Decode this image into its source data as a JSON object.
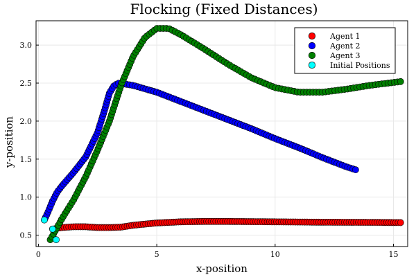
{
  "chart_data": {
    "type": "scatter",
    "title": "Flocking (Fixed Distances)",
    "xlabel": "x-position",
    "ylabel": "y-position",
    "xlim": [
      -0.1,
      15.6
    ],
    "ylim": [
      0.35,
      3.32
    ],
    "xticks": [
      0,
      5,
      10,
      15
    ],
    "yticks": [
      0.5,
      1.0,
      1.5,
      2.0,
      2.5,
      3.0
    ],
    "xtick_labels": [
      "0",
      "5",
      "10",
      "15"
    ],
    "ytick_labels": [
      "0.5",
      "1.0",
      "1.5",
      "2.0",
      "2.5",
      "3.0"
    ],
    "grid": true,
    "legend_position": "top-right",
    "series": [
      {
        "name": "Agent 1",
        "color": "#ff0000",
        "anchors": [
          [
            0.6,
            0.58
          ],
          [
            1.0,
            0.6
          ],
          [
            1.5,
            0.61
          ],
          [
            2.0,
            0.61
          ],
          [
            2.5,
            0.6
          ],
          [
            3.0,
            0.6
          ],
          [
            3.5,
            0.605
          ],
          [
            4.0,
            0.63
          ],
          [
            5.0,
            0.66
          ],
          [
            6.0,
            0.675
          ],
          [
            7.0,
            0.68
          ],
          [
            8.0,
            0.68
          ],
          [
            10.0,
            0.675
          ],
          [
            12.0,
            0.67
          ],
          [
            14.0,
            0.668
          ],
          [
            15.3,
            0.665
          ]
        ],
        "count": 150
      },
      {
        "name": "Agent 2",
        "color": "#0000ff",
        "anchors": [
          [
            0.25,
            0.7
          ],
          [
            0.4,
            0.8
          ],
          [
            0.6,
            0.95
          ],
          [
            0.8,
            1.07
          ],
          [
            1.0,
            1.15
          ],
          [
            1.5,
            1.33
          ],
          [
            2.0,
            1.53
          ],
          [
            2.5,
            1.85
          ],
          [
            2.8,
            2.15
          ],
          [
            3.0,
            2.37
          ],
          [
            3.2,
            2.47
          ],
          [
            3.4,
            2.5
          ],
          [
            4.0,
            2.47
          ],
          [
            5.0,
            2.38
          ],
          [
            6.0,
            2.26
          ],
          [
            7.0,
            2.14
          ],
          [
            8.0,
            2.02
          ],
          [
            9.0,
            1.9
          ],
          [
            10.0,
            1.77
          ],
          [
            11.0,
            1.65
          ],
          [
            12.0,
            1.52
          ],
          [
            13.0,
            1.4
          ],
          [
            13.4,
            1.36
          ]
        ],
        "count": 145
      },
      {
        "name": "Agent 3",
        "color": "#008000",
        "anchors": [
          [
            0.5,
            0.44
          ],
          [
            0.7,
            0.55
          ],
          [
            1.0,
            0.72
          ],
          [
            1.5,
            0.97
          ],
          [
            2.0,
            1.27
          ],
          [
            2.5,
            1.62
          ],
          [
            3.0,
            2.0
          ],
          [
            3.5,
            2.48
          ],
          [
            4.0,
            2.85
          ],
          [
            4.5,
            3.1
          ],
          [
            5.0,
            3.22
          ],
          [
            5.5,
            3.22
          ],
          [
            6.0,
            3.14
          ],
          [
            7.0,
            2.95
          ],
          [
            8.0,
            2.75
          ],
          [
            9.0,
            2.57
          ],
          [
            10.0,
            2.44
          ],
          [
            11.0,
            2.38
          ],
          [
            12.0,
            2.38
          ],
          [
            13.0,
            2.42
          ],
          [
            14.0,
            2.47
          ],
          [
            15.3,
            2.52
          ]
        ],
        "count": 155
      },
      {
        "name": "Initial Positions",
        "color": "#00ffff",
        "points": [
          [
            0.25,
            0.7
          ],
          [
            0.6,
            0.58
          ],
          [
            0.75,
            0.44
          ]
        ]
      }
    ]
  }
}
